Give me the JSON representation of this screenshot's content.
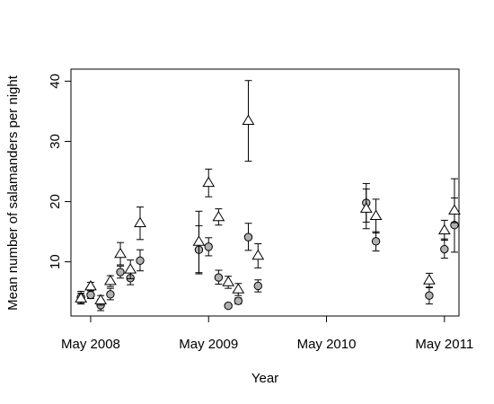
{
  "chart_data": {
    "type": "scatter",
    "title": "",
    "xlabel": "Year",
    "ylabel": "Mean number of salamanders per night",
    "x_tick_labels": [
      "May 2008",
      "May 2009",
      "May 2010",
      "May 2011"
    ],
    "x_ticks": [
      "2008-05-01",
      "2009-05-01",
      "2010-05-01",
      "2011-05-01"
    ],
    "xlim": [
      "2008-03-01",
      "2011-06-15"
    ],
    "y_ticks": [
      10,
      20,
      30,
      40
    ],
    "ylim": [
      1,
      42
    ],
    "grid": false,
    "legend": false,
    "series": [
      {
        "marker": "circle",
        "fill": "#b0b0b0",
        "points": [
          {
            "x": "2008-04-01",
            "y": 4.1,
            "err_low": 3.1,
            "err_high": 5.1
          },
          {
            "x": "2008-05-01",
            "y": 4.5,
            "err_low": 3.9,
            "err_high": 5.2
          },
          {
            "x": "2008-06-01",
            "y": 2.8,
            "err_low": 1.9,
            "err_high": 3.7
          },
          {
            "x": "2008-07-01",
            "y": 4.6,
            "err_low": 3.7,
            "err_high": 5.6
          },
          {
            "x": "2008-08-01",
            "y": 8.3,
            "err_low": 7.3,
            "err_high": 9.3
          },
          {
            "x": "2008-09-01",
            "y": 7.3,
            "err_low": 6.2,
            "err_high": 8.4
          },
          {
            "x": "2008-10-01",
            "y": 10.2,
            "err_low": 8.5,
            "err_high": 12.0
          },
          {
            "x": "2009-04-01",
            "y": 12.0,
            "err_low": 8.0,
            "err_high": 16.0
          },
          {
            "x": "2009-05-01",
            "y": 12.5,
            "err_low": 11.0,
            "err_high": 14.0
          },
          {
            "x": "2009-06-01",
            "y": 7.4,
            "err_low": 6.3,
            "err_high": 8.6
          },
          {
            "x": "2009-07-01",
            "y": 2.7,
            "err_low": 2.4,
            "err_high": 3.0
          },
          {
            "x": "2009-08-01",
            "y": 3.5,
            "err_low": 3.0,
            "err_high": 4.0
          },
          {
            "x": "2009-09-01",
            "y": 14.1,
            "err_low": 11.9,
            "err_high": 16.4
          },
          {
            "x": "2009-10-01",
            "y": 6.0,
            "err_low": 5.0,
            "err_high": 7.0
          },
          {
            "x": "2010-09-01",
            "y": 19.8,
            "err_low": 16.6,
            "err_high": 23.0
          },
          {
            "x": "2010-10-01",
            "y": 13.4,
            "err_low": 11.8,
            "err_high": 15.0
          },
          {
            "x": "2011-03-15",
            "y": 4.4,
            "err_low": 3.0,
            "err_high": 5.8
          },
          {
            "x": "2011-05-01",
            "y": 12.1,
            "err_low": 10.6,
            "err_high": 13.8
          },
          {
            "x": "2011-06-01",
            "y": 16.1,
            "err_low": 11.6,
            "err_high": 20.6
          }
        ]
      },
      {
        "marker": "triangle",
        "fill": "#ffffff",
        "points": [
          {
            "x": "2008-04-01",
            "y": 3.9,
            "err_low": 3.0,
            "err_high": 4.8
          },
          {
            "x": "2008-05-01",
            "y": 5.9,
            "err_low": 5.2,
            "err_high": 6.6
          },
          {
            "x": "2008-06-01",
            "y": 3.6,
            "err_low": 2.8,
            "err_high": 4.4
          },
          {
            "x": "2008-07-01",
            "y": 6.8,
            "err_low": 5.9,
            "err_high": 7.7
          },
          {
            "x": "2008-08-01",
            "y": 11.3,
            "err_low": 9.5,
            "err_high": 13.2
          },
          {
            "x": "2008-09-01",
            "y": 8.7,
            "err_low": 7.2,
            "err_high": 10.3
          },
          {
            "x": "2008-10-01",
            "y": 16.4,
            "err_low": 13.7,
            "err_high": 19.1
          },
          {
            "x": "2009-04-01",
            "y": 13.3,
            "err_low": 8.2,
            "err_high": 18.4
          },
          {
            "x": "2009-05-01",
            "y": 23.1,
            "err_low": 20.8,
            "err_high": 25.4
          },
          {
            "x": "2009-06-01",
            "y": 17.4,
            "err_low": 16.1,
            "err_high": 18.8
          },
          {
            "x": "2009-07-01",
            "y": 6.6,
            "err_low": 5.6,
            "err_high": 7.6
          },
          {
            "x": "2009-08-01",
            "y": 5.4,
            "err_low": 4.4,
            "err_high": 6.4
          },
          {
            "x": "2009-09-01",
            "y": 33.4,
            "err_low": 26.7,
            "err_high": 40.1
          },
          {
            "x": "2009-10-01",
            "y": 11.0,
            "err_low": 9.0,
            "err_high": 13.0
          },
          {
            "x": "2010-09-01",
            "y": 18.8,
            "err_low": 15.5,
            "err_high": 22.1
          },
          {
            "x": "2010-10-01",
            "y": 17.6,
            "err_low": 14.8,
            "err_high": 20.4
          },
          {
            "x": "2011-03-15",
            "y": 6.9,
            "err_low": 5.7,
            "err_high": 8.1
          },
          {
            "x": "2011-05-01",
            "y": 15.2,
            "err_low": 13.6,
            "err_high": 16.9
          },
          {
            "x": "2011-06-01",
            "y": 18.5,
            "err_low": 16.5,
            "err_high": 23.8
          }
        ]
      }
    ]
  }
}
